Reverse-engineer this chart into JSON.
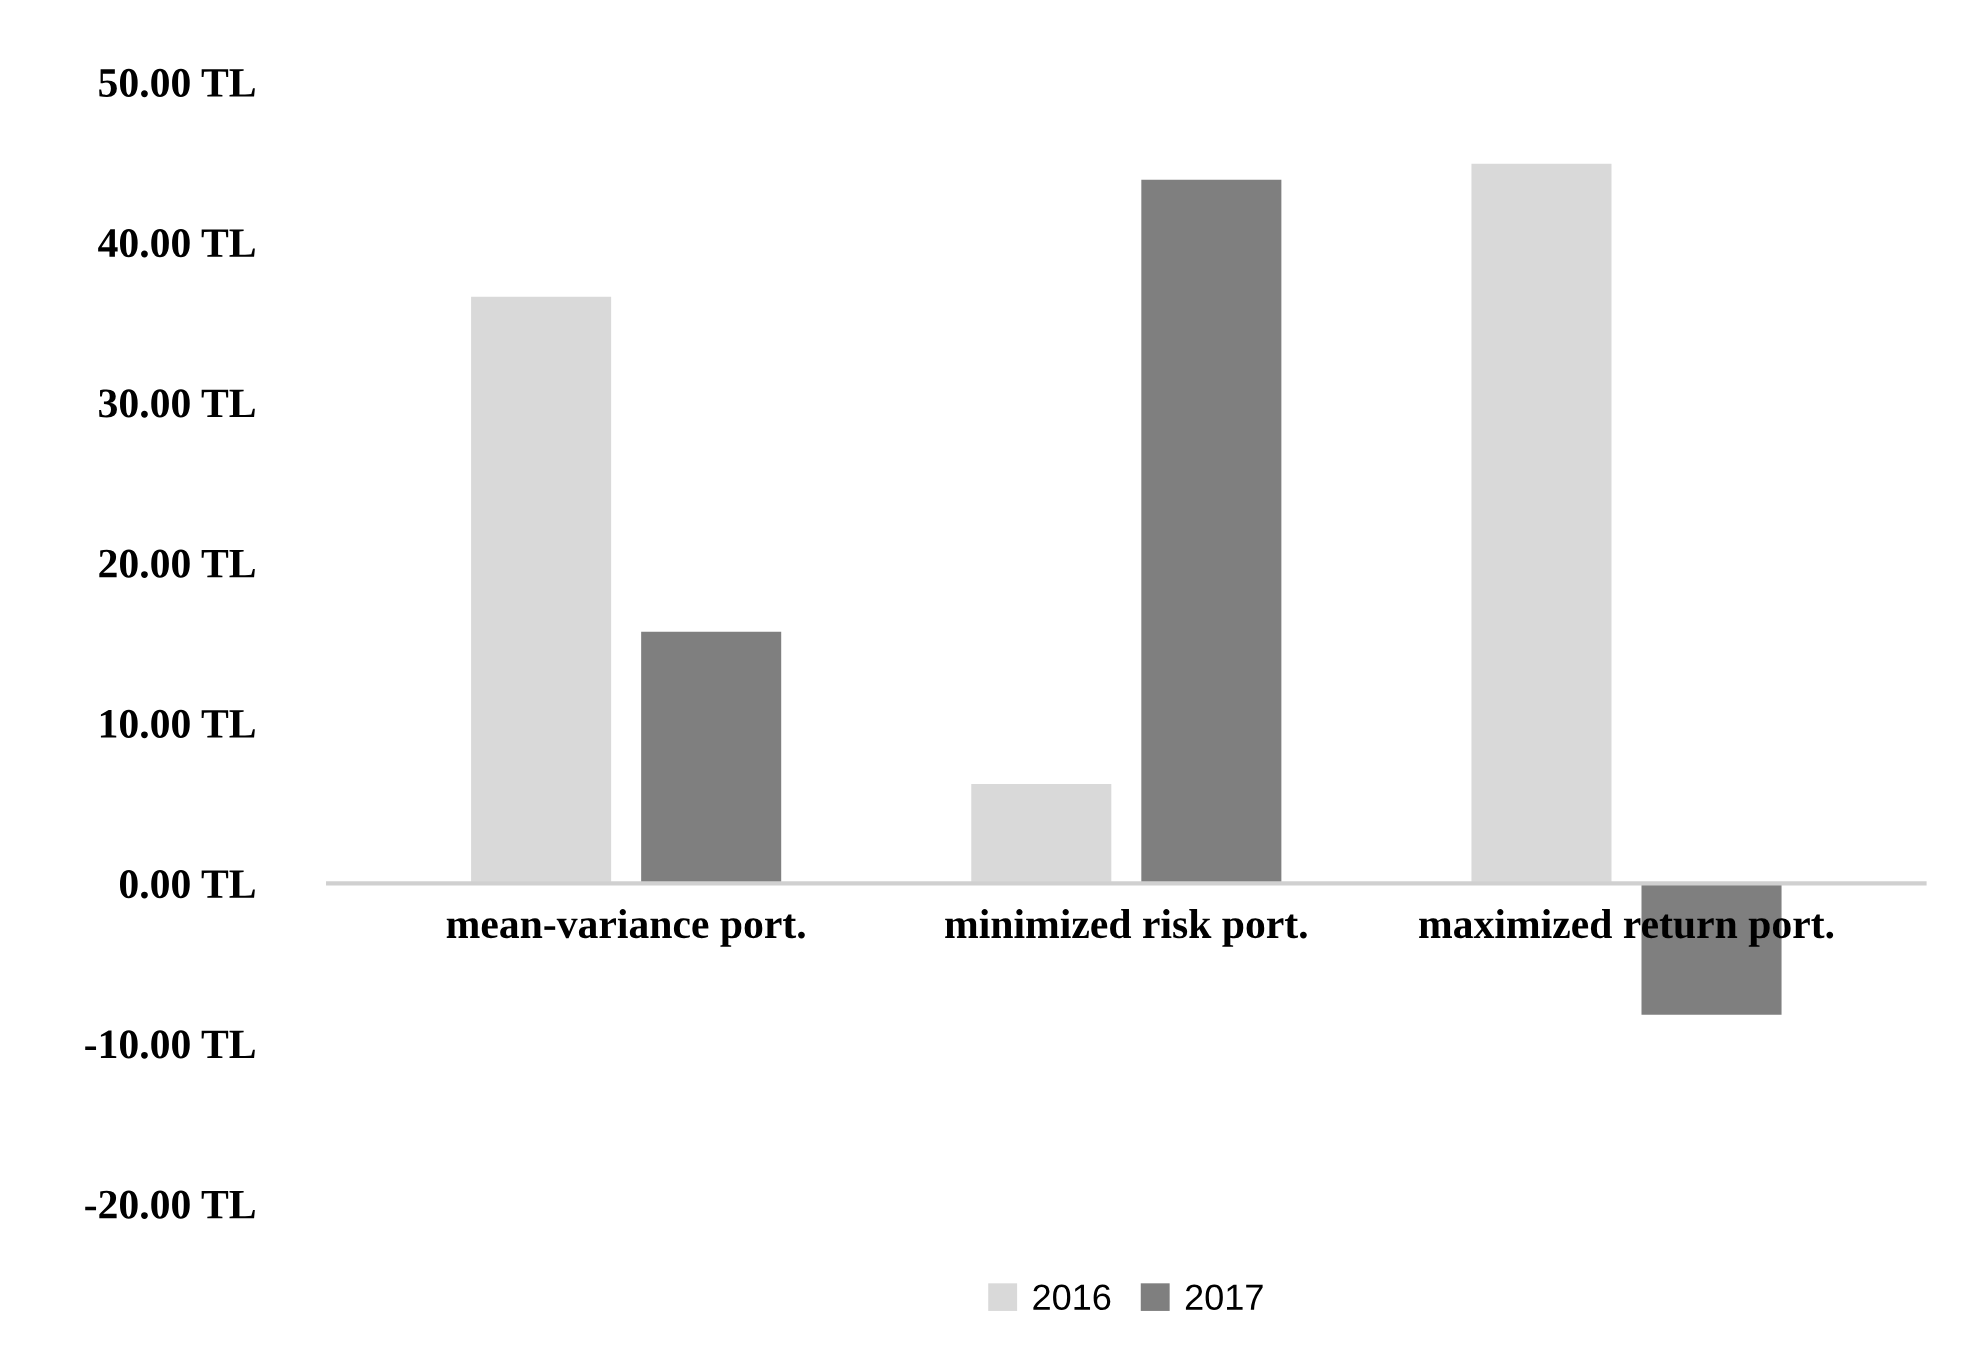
{
  "chart_data": {
    "type": "bar",
    "categories": [
      "mean-variance port.",
      "minimized risk port.",
      "maximized return port."
    ],
    "series": [
      {
        "name": "2016",
        "color": "#d9d9d9",
        "values": [
          36.6,
          6.2,
          44.9
        ]
      },
      {
        "name": "2017",
        "color": "#7f7f7f",
        "values": [
          15.7,
          43.9,
          -8.2
        ]
      }
    ],
    "ylim": [
      -20,
      50
    ],
    "yticks": [
      {
        "value": -20,
        "label": "-20.00 TL"
      },
      {
        "value": -10,
        "label": "-10.00 TL"
      },
      {
        "value": 0,
        "label": "0.00 TL"
      },
      {
        "value": 10,
        "label": "10.00 TL"
      },
      {
        "value": 20,
        "label": "20.00 TL"
      },
      {
        "value": 30,
        "label": "30.00 TL"
      },
      {
        "value": 40,
        "label": "40.00 TL"
      },
      {
        "value": 50,
        "label": "50.00 TL"
      }
    ],
    "grid": false,
    "legend": "bottom"
  }
}
